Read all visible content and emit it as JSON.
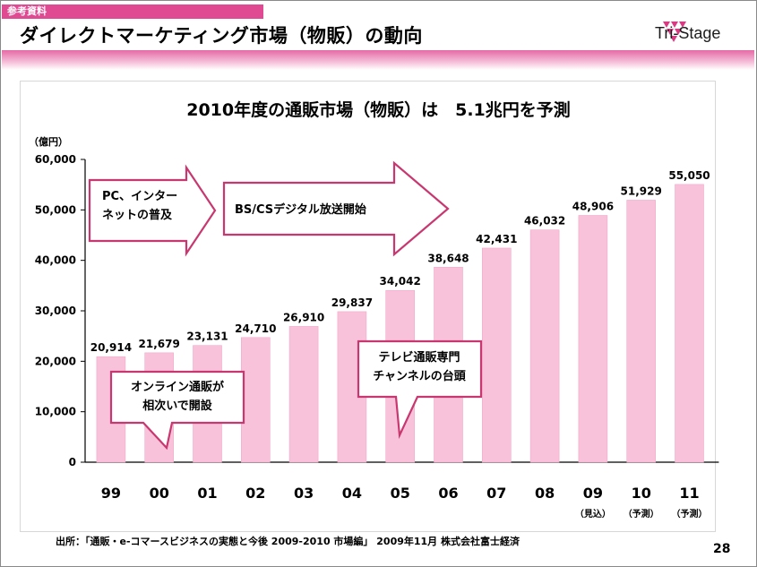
{
  "slide": {
    "tag": "参考資料",
    "title": "ダイレクトマーケティング市場（物販）の動向",
    "logo_text": "Tri-Stage",
    "page_number": "28",
    "source": "出所：「通販・e-コマースビジネスの実態と今後 2009-2010 市場編」 2009年11月 株式会社富士経済"
  },
  "colors": {
    "accent": "#e04a93",
    "bar": "#f9c2db",
    "arrow_border": "#c8376f"
  },
  "chart_data": {
    "type": "bar",
    "title": "2010年度の通販市場（物販）は　5.1兆円を予測",
    "ylabel": "（億円）",
    "ylim": [
      0,
      60000
    ],
    "yticks": [
      0,
      10000,
      20000,
      30000,
      40000,
      50000,
      60000
    ],
    "ytick_labels": [
      "0",
      "10,000",
      "20,000",
      "30,000",
      "40,000",
      "50,000",
      "60,000"
    ],
    "categories": [
      "99",
      "00",
      "01",
      "02",
      "03",
      "04",
      "05",
      "06",
      "07",
      "08",
      "09",
      "10",
      "11"
    ],
    "category_notes": [
      "",
      "",
      "",
      "",
      "",
      "",
      "",
      "",
      "",
      "",
      "（見込）",
      "（予測）",
      "（予測）"
    ],
    "values": [
      20914,
      21679,
      23131,
      24710,
      26910,
      29837,
      34042,
      38648,
      42431,
      46032,
      48906,
      51929,
      55050
    ],
    "value_labels": [
      "20,914",
      "21,679",
      "23,131",
      "24,710",
      "26,910",
      "29,837",
      "34,042",
      "38,648",
      "42,431",
      "46,032",
      "48,906",
      "51,929",
      "55,050"
    ],
    "grid": false,
    "annotations": {
      "arrow_pc": [
        "PC、インター",
        "ネットの普及"
      ],
      "arrow_bs": "BS/CSデジタル放送開始",
      "callout_online": [
        "オンライン通販が",
        "相次いで開設"
      ],
      "callout_tv": [
        "テレビ通販専門",
        "チャンネルの台頭"
      ]
    }
  }
}
